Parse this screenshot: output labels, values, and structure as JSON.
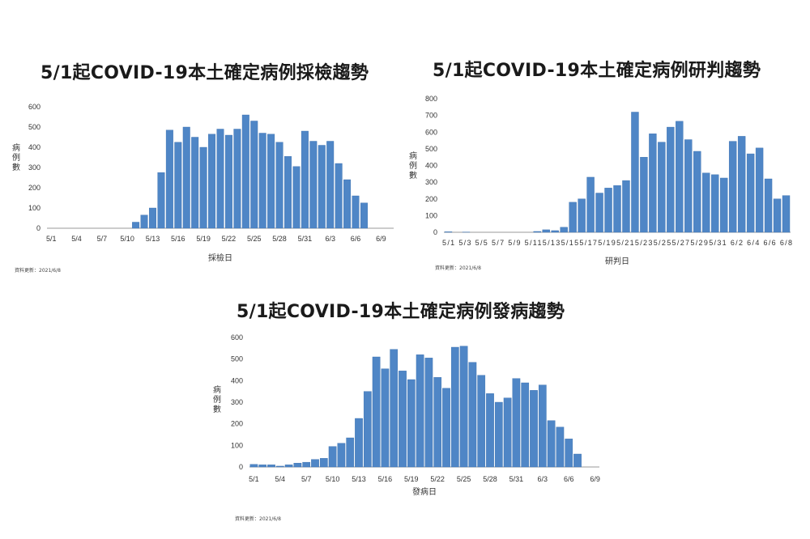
{
  "chart_data": [
    {
      "type": "bar",
      "title": "5/1起COVID-19本土確定病例採檢趨勢",
      "xlabel": "採檢日",
      "ylabel": "病例數",
      "ylim": [
        0,
        600
      ],
      "yticks": [
        0,
        100,
        200,
        300,
        400,
        500,
        600
      ],
      "categories": [
        "5/1",
        "5/2",
        "5/3",
        "5/4",
        "5/5",
        "5/6",
        "5/7",
        "5/8",
        "5/9",
        "5/10",
        "5/11",
        "5/12",
        "5/13",
        "5/14",
        "5/15",
        "5/16",
        "5/17",
        "5/18",
        "5/19",
        "5/20",
        "5/21",
        "5/22",
        "5/23",
        "5/24",
        "5/25",
        "5/26",
        "5/27",
        "5/28",
        "5/29",
        "5/30",
        "5/31",
        "6/1",
        "6/2",
        "6/3",
        "6/4",
        "6/5",
        "6/6",
        "6/7",
        "6/8",
        "6/9"
      ],
      "xtick_labels": [
        "5/1",
        "5/4",
        "5/7",
        "5/10",
        "5/13",
        "5/16",
        "5/19",
        "5/22",
        "5/25",
        "5/28",
        "5/31",
        "6/3",
        "6/6",
        "6/9"
      ],
      "values": [
        0,
        0,
        0,
        0,
        0,
        0,
        0,
        0,
        0,
        0,
        30,
        65,
        100,
        275,
        485,
        425,
        500,
        450,
        400,
        465,
        490,
        460,
        490,
        560,
        530,
        470,
        465,
        425,
        355,
        305,
        480,
        430,
        410,
        430,
        320,
        240,
        160,
        125,
        0,
        0
      ],
      "grid": false,
      "legend": "none",
      "bar_color": "#4f86c6",
      "source_note": "資料更新：2021/6/8"
    },
    {
      "type": "bar",
      "title": "5/1起COVID-19本土確定病例研判趨勢",
      "xlabel": "研判日",
      "ylabel": "病例數",
      "ylim": [
        0,
        800
      ],
      "yticks": [
        0,
        100,
        200,
        300,
        400,
        500,
        600,
        700,
        800
      ],
      "categories": [
        "5/1",
        "5/2",
        "5/3",
        "5/4",
        "5/5",
        "5/6",
        "5/7",
        "5/8",
        "5/9",
        "5/10",
        "5/11",
        "5/12",
        "5/13",
        "5/14",
        "5/15",
        "5/16",
        "5/17",
        "5/18",
        "5/19",
        "5/20",
        "5/21",
        "5/22",
        "5/23",
        "5/24",
        "5/25",
        "5/26",
        "5/27",
        "5/28",
        "5/29",
        "5/30",
        "5/31",
        "6/1",
        "6/2",
        "6/3",
        "6/4",
        "6/5",
        "6/6",
        "6/7",
        "6/8"
      ],
      "xtick_labels": [
        "5/1",
        "5/3",
        "5/5",
        "5/7",
        "5/9",
        "5/11",
        "5/13",
        "5/15",
        "5/17",
        "5/19",
        "5/21",
        "5/23",
        "5/25",
        "5/27",
        "5/29",
        "5/31",
        "6/2",
        "6/4",
        "6/6",
        "6/8"
      ],
      "xtick_label_text": "5/1  5/3  5/5  5/7  5/9  5/115/135/155/175/195/215/235/255/275/295/31  6/2  6/4  6/6  6/8",
      "values": [
        3,
        0,
        1,
        0,
        0,
        0,
        0,
        0,
        0,
        0,
        5,
        15,
        10,
        30,
        180,
        200,
        330,
        235,
        265,
        280,
        310,
        720,
        450,
        590,
        540,
        630,
        665,
        555,
        485,
        355,
        345,
        325,
        545,
        575,
        470,
        505,
        320,
        200,
        220
      ],
      "grid": false,
      "legend": "none",
      "bar_color": "#4f86c6",
      "source_note": "資料更新：2021/6/8"
    },
    {
      "type": "bar",
      "title": "5/1起COVID-19本土確定病例發病趨勢",
      "xlabel": "發病日",
      "ylabel": "病例數",
      "ylim": [
        0,
        600
      ],
      "yticks": [
        0,
        100,
        200,
        300,
        400,
        500,
        600
      ],
      "categories": [
        "5/1",
        "5/2",
        "5/3",
        "5/4",
        "5/5",
        "5/6",
        "5/7",
        "5/8",
        "5/9",
        "5/10",
        "5/11",
        "5/12",
        "5/13",
        "5/14",
        "5/15",
        "5/16",
        "5/17",
        "5/18",
        "5/19",
        "5/20",
        "5/21",
        "5/22",
        "5/23",
        "5/24",
        "5/25",
        "5/26",
        "5/27",
        "5/28",
        "5/29",
        "5/30",
        "5/31",
        "6/1",
        "6/2",
        "6/3",
        "6/4",
        "6/5",
        "6/6",
        "6/7",
        "6/8",
        "6/9"
      ],
      "xtick_labels": [
        "5/1",
        "5/4",
        "5/7",
        "5/10",
        "5/13",
        "5/16",
        "5/19",
        "5/22",
        "5/25",
        "5/28",
        "5/31",
        "6/3",
        "6/6",
        "6/9"
      ],
      "values": [
        12,
        10,
        10,
        4,
        10,
        18,
        22,
        35,
        40,
        95,
        110,
        135,
        225,
        350,
        510,
        455,
        545,
        445,
        405,
        520,
        505,
        415,
        365,
        555,
        560,
        485,
        425,
        340,
        300,
        320,
        410,
        390,
        355,
        380,
        215,
        185,
        130,
        60,
        0,
        0
      ],
      "grid": false,
      "legend": "none",
      "bar_color": "#4f86c6",
      "source_note": "資料更新：2021/6/8"
    }
  ]
}
